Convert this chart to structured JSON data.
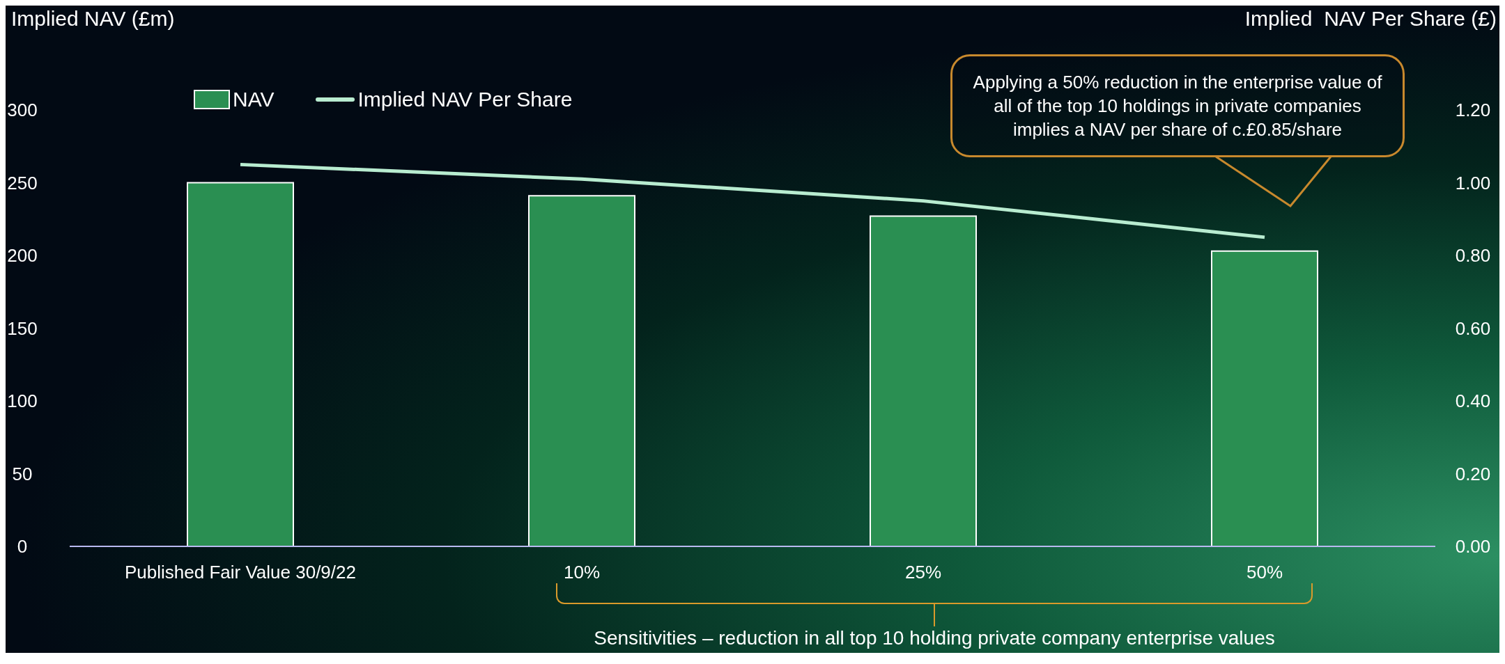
{
  "chart_data": {
    "type": "bar",
    "ylabel": "Implied NAV (£m)",
    "y2label": "Implied  NAV Per Share (£)",
    "categories": [
      "Published Fair Value 30/9/22",
      "10%",
      "25%",
      "50%"
    ],
    "series": [
      {
        "name": "NAV",
        "color": "#2a8f52",
        "values": [
          250,
          241,
          227,
          203
        ]
      },
      {
        "name": "Implied NAV Per Share",
        "type": "line",
        "axis": "y2",
        "color": "#b8ecd0",
        "values": [
          1.05,
          1.01,
          0.95,
          0.85
        ]
      }
    ],
    "ylim": [
      0,
      300
    ],
    "yticks": [
      0,
      50,
      100,
      150,
      200,
      250,
      300
    ],
    "y2lim": [
      0,
      1.2
    ],
    "y2ticks": [
      {
        "value": 0,
        "label": "0.00"
      },
      {
        "value": 0.2,
        "label": "0.20"
      },
      {
        "value": 0.4,
        "label": "0.40"
      },
      {
        "value": 0.6,
        "label": "0.60"
      },
      {
        "value": 0.8,
        "label": "0.80"
      },
      {
        "value": 1,
        "label": "1.00"
      },
      {
        "value": 1.2,
        "label": "1.20"
      }
    ],
    "legend": "top left",
    "grid": false,
    "marker": "none",
    "annotations": [
      "Applying a 50% reduction in the enterprise value of all of the top 10 holdings in  private companies implies a NAV per share of c.£0.85/share",
      "Sensitivities – reduction in all top 10 holding private company enterprise values"
    ]
  }
}
